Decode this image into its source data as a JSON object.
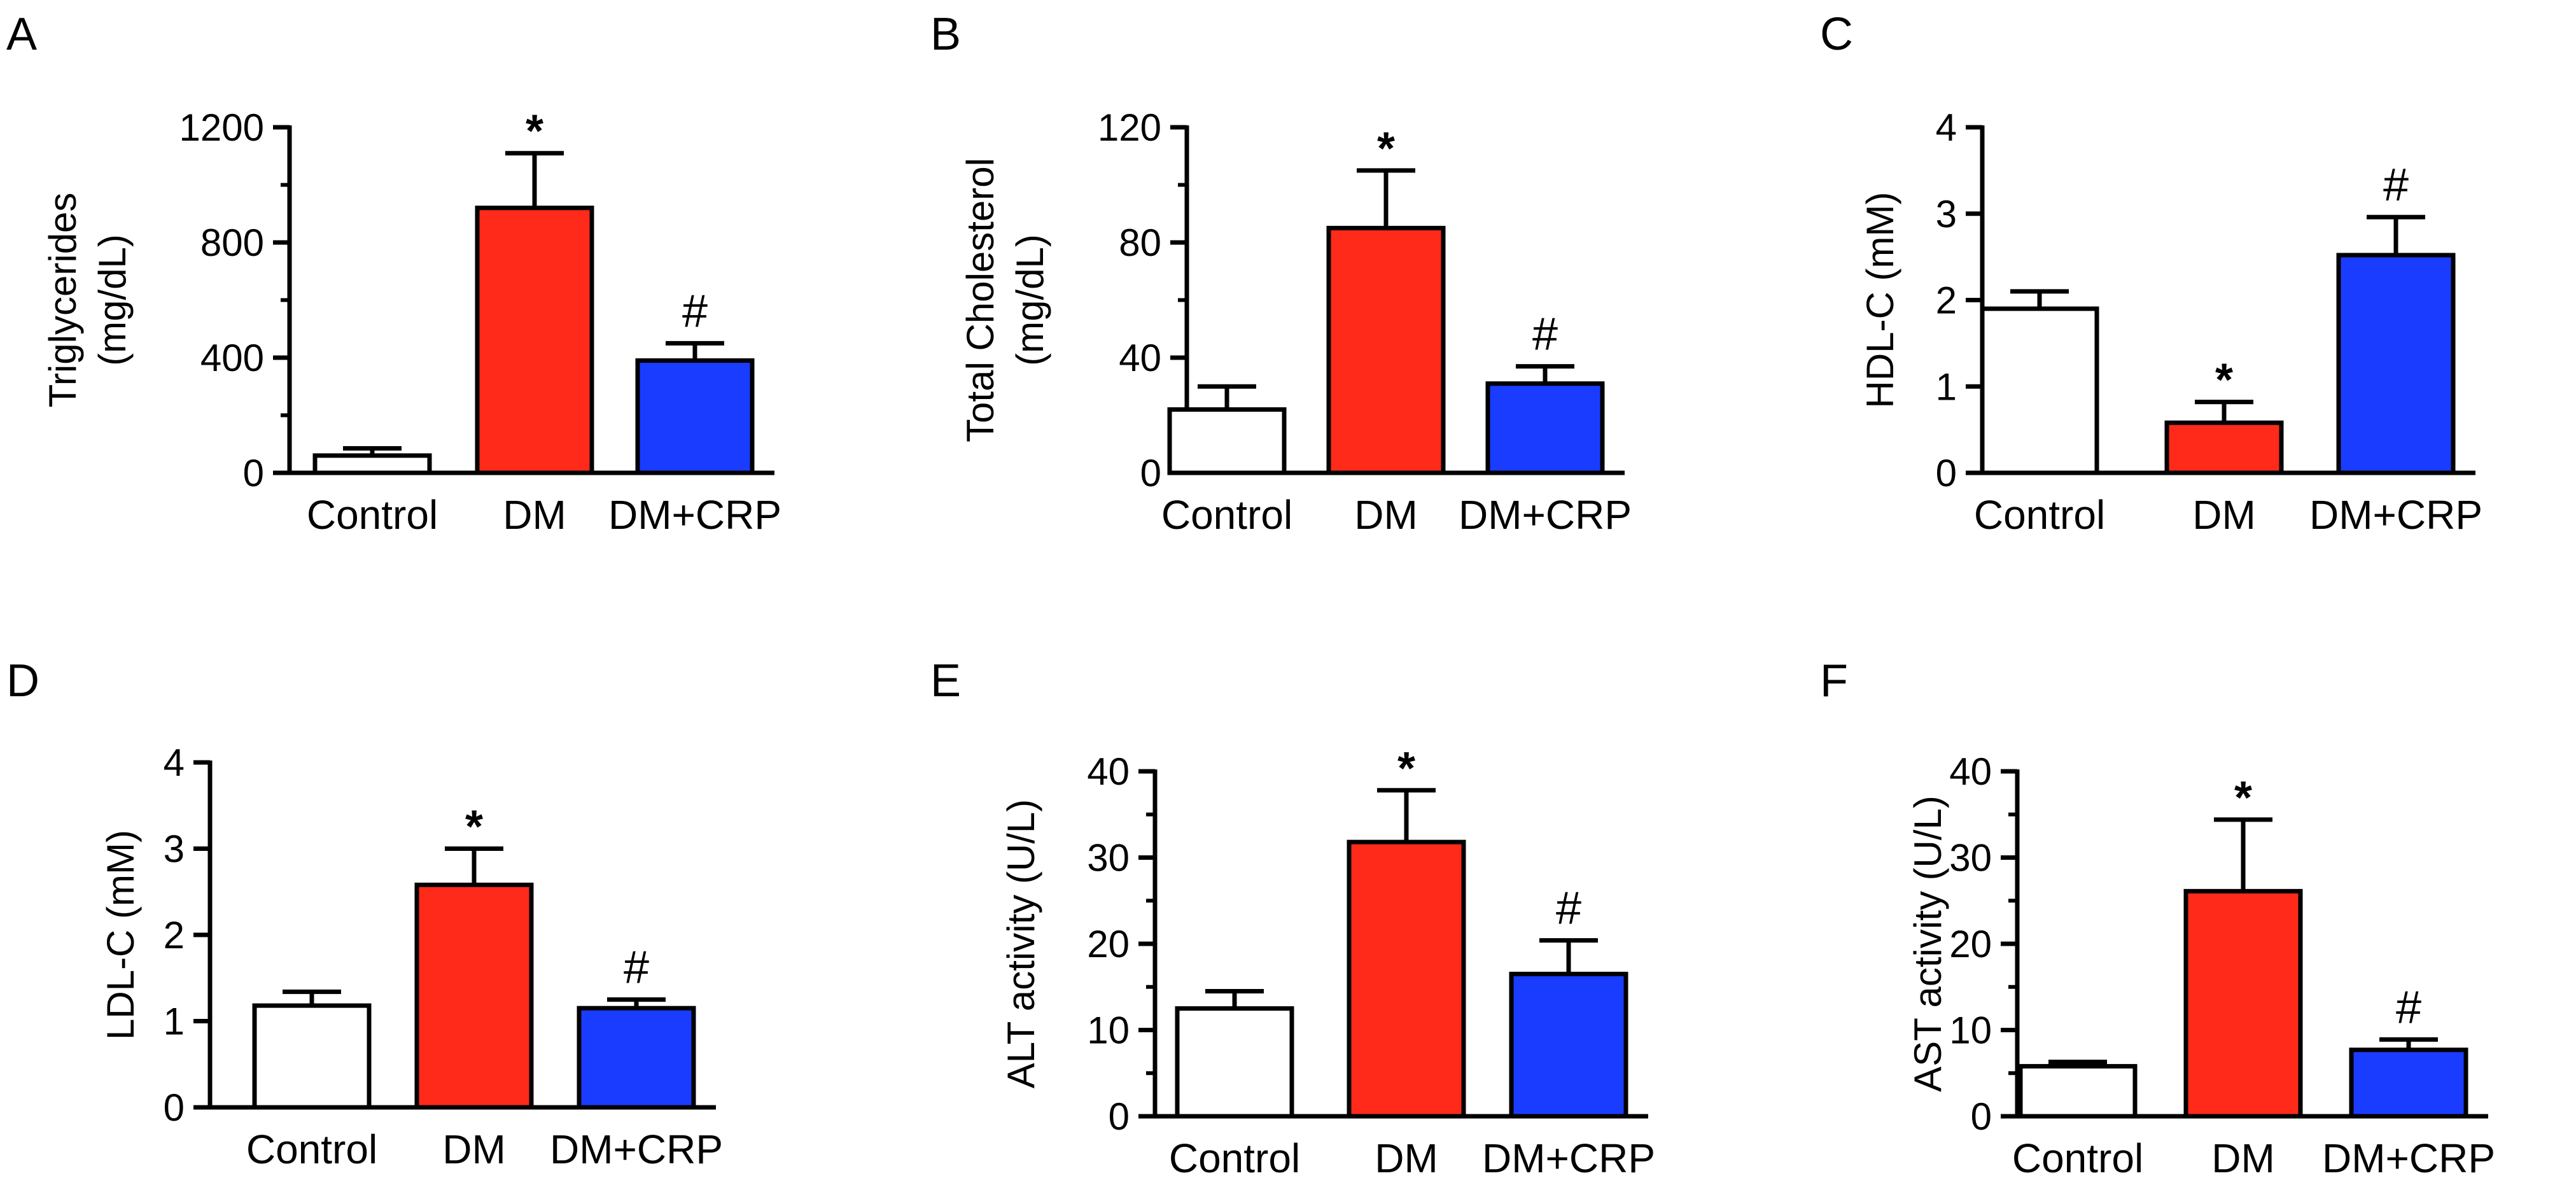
{
  "chart_data": [
    {
      "type": "bar",
      "panel": "A",
      "ylabel_lines": [
        "Triglycerides",
        "(mg/dL)"
      ],
      "xlabel": "",
      "categories": [
        "Control",
        "DM",
        "DM+CRP"
      ],
      "values": [
        60,
        920,
        390
      ],
      "errors": [
        25,
        190,
        60
      ],
      "significance": [
        "",
        "*",
        "#"
      ],
      "ylim": [
        0,
        1200
      ],
      "yticks": [
        0,
        400,
        800,
        1200
      ],
      "minor_ticks": 1,
      "colors": [
        "#ffffff",
        "#ff2a1a",
        "#1a3cff"
      ]
    },
    {
      "type": "bar",
      "panel": "B",
      "ylabel_lines": [
        "Total Cholesterol",
        "(mg/dL)"
      ],
      "xlabel": "",
      "categories": [
        "Control",
        "DM",
        "DM+CRP"
      ],
      "values": [
        22,
        85,
        31
      ],
      "errors": [
        8,
        20,
        6
      ],
      "significance": [
        "",
        "*",
        "#"
      ],
      "ylim": [
        0,
        120
      ],
      "yticks": [
        0,
        40,
        80,
        120
      ],
      "minor_ticks": 1,
      "colors": [
        "#ffffff",
        "#ff2a1a",
        "#1a3cff"
      ]
    },
    {
      "type": "bar",
      "panel": "C",
      "ylabel_lines": [
        "HDL-C (mM)"
      ],
      "xlabel": "",
      "categories": [
        "Control",
        "DM",
        "DM+CRP"
      ],
      "values": [
        1.9,
        0.58,
        2.52
      ],
      "errors": [
        0.2,
        0.24,
        0.44
      ],
      "significance": [
        "",
        "*",
        "#"
      ],
      "ylim": [
        0,
        4
      ],
      "yticks": [
        0,
        1,
        2,
        3,
        4
      ],
      "minor_ticks": 0,
      "colors": [
        "#ffffff",
        "#ff2a1a",
        "#1a3cff"
      ]
    },
    {
      "type": "bar",
      "panel": "D",
      "ylabel_lines": [
        "LDL-C (mM)"
      ],
      "xlabel": "",
      "categories": [
        "Control",
        "DM",
        "DM+CRP"
      ],
      "values": [
        1.18,
        2.58,
        1.15
      ],
      "errors": [
        0.16,
        0.42,
        0.1
      ],
      "significance": [
        "",
        "*",
        "#"
      ],
      "ylim": [
        0,
        4
      ],
      "yticks": [
        0,
        1,
        2,
        3,
        4
      ],
      "minor_ticks": 0,
      "colors": [
        "#ffffff",
        "#ff2a1a",
        "#1a3cff"
      ]
    },
    {
      "type": "bar",
      "panel": "E",
      "ylabel_lines": [
        "ALT activity  (U/L)"
      ],
      "xlabel": "",
      "categories": [
        "Control",
        "DM",
        "DM+CRP"
      ],
      "values": [
        12.5,
        31.8,
        16.5
      ],
      "errors": [
        2.0,
        6.0,
        3.9
      ],
      "significance": [
        "",
        "*",
        "#"
      ],
      "ylim": [
        0,
        40
      ],
      "yticks": [
        0,
        10,
        20,
        30,
        40
      ],
      "minor_ticks": 1,
      "colors": [
        "#ffffff",
        "#ff2a1a",
        "#1a3cff"
      ]
    },
    {
      "type": "bar",
      "panel": "F",
      "ylabel_lines": [
        "AST activity (U/L)"
      ],
      "xlabel": "",
      "categories": [
        "Control",
        "DM",
        "DM+CRP"
      ],
      "values": [
        5.8,
        26.1,
        7.7
      ],
      "errors": [
        0.5,
        8.3,
        1.2
      ],
      "significance": [
        "",
        "*",
        "#"
      ],
      "ylim": [
        0,
        40
      ],
      "yticks": [
        0,
        10,
        20,
        30,
        40
      ],
      "minor_ticks": 1,
      "colors": [
        "#ffffff",
        "#ff2a1a",
        "#1a3cff"
      ]
    }
  ]
}
